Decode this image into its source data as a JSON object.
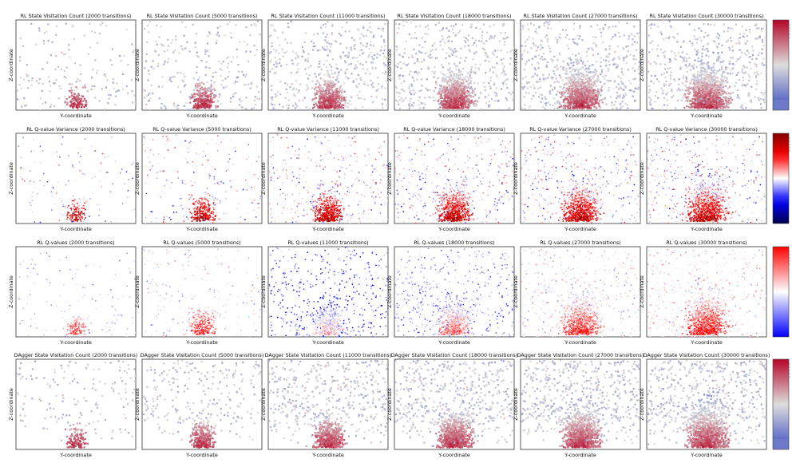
{
  "figure": {
    "xlabel": "Y-coordinate",
    "ylabel": "Z-coordinate"
  },
  "rows": [
    {
      "id": "rl-visitation",
      "colormap": "coolwarm",
      "titles": [
        "RL State Visitation Count (2000 transitions)",
        "RL State Visitation Count (5000 transitions)",
        "RL State Visitation Count (11000 transitions)",
        "RL State Visitation Count (18000 transitions)",
        "RL State Visitation Count (27000 transitions)",
        "RL State Visitation Count (30000 transitions)"
      ]
    },
    {
      "id": "rl-qvariance",
      "colormap": "seismic",
      "titles": [
        "RL Q-value Variance (2000 transitions)",
        "RL Q-value Variance (5000 transitions)",
        "RL Q-value Variance (11000 transitions)",
        "RL Q-value Variance (18000 transitions)",
        "RL Q-value Variance (27000 transitions)",
        "RL Q-value Variance (30000 transitions)"
      ]
    },
    {
      "id": "rl-qvalues",
      "colormap": "bwr",
      "titles": [
        "RL Q-values (2000 transitions)",
        "RL Q-values (5000 transitions)",
        "RL Q-values (11000 transitions)",
        "RL Q-values (18000 transitions)",
        "RL Q-values (27000 transitions)",
        "RL Q-values (30000 transitions)"
      ]
    },
    {
      "id": "dagger-visitation",
      "colormap": "coolwarm",
      "titles": [
        "DAgger State Visitation Count (2000 transitions)",
        "DAgger State Visitation Count (5000 transitions)",
        "DAgger State Visitation Count (11000 transitions)",
        "DAgger State Visitation Count (18000 transitions)",
        "DAgger State Visitation Count (27000 transitions)",
        "DAgger State Visitation Count (30000 transitions)"
      ]
    }
  ],
  "chart_data": {
    "type": "heatmap",
    "transitions": [
      2000,
      5000,
      11000,
      18000,
      27000,
      30000
    ],
    "xlabel": "Y-coordinate",
    "ylabel": "Z-coordinate",
    "series": [
      {
        "name": "RL State Visitation Count",
        "colormap": "coolwarm"
      },
      {
        "name": "RL Q-value Variance",
        "colormap": "seismic"
      },
      {
        "name": "RL Q-values",
        "colormap": "bwr"
      },
      {
        "name": "DAgger State Visitation Count",
        "colormap": "coolwarm"
      }
    ],
    "grid": false
  }
}
